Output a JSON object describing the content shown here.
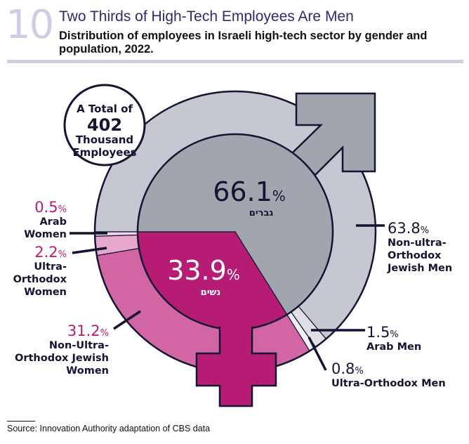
{
  "header": {
    "number": "10",
    "title": "Two Thirds of High-Tech Employees Are Men",
    "subtitle": "Distribution of employees in Israeli high-tech sector by gender and population, 2022."
  },
  "footer": {
    "source": "Source: Innovation Authority adaptation of CBS data"
  },
  "colors": {
    "men_inner": "#a1a5ae",
    "men_outer": "#c6c8d1",
    "arab_men": "#dfe0e6",
    "ultra_men": "#f1f1f4",
    "women_inner": "#b71c74",
    "women_outer": "#d266a5",
    "ultra_women": "#e6a8cc",
    "arab_women": "#f6d4e7",
    "outline": "#141433",
    "accent_pink": "#b71c74"
  },
  "chart_data": {
    "type": "pie",
    "title": "Two Thirds of High-Tech Employees Are Men",
    "total_label": {
      "line1": "A Total of",
      "value": "402",
      "line2": "Thousand",
      "line3": "Employees"
    },
    "inner": [
      {
        "name": "Men",
        "label_he": "גברים",
        "value": 66.1,
        "display": "66.1",
        "unit": "%"
      },
      {
        "name": "Women",
        "label_he": "נשים",
        "value": 33.9,
        "display": "33.9",
        "unit": "%"
      }
    ],
    "outer": [
      {
        "name": "Non-ultra-Orthodox Jewish Men",
        "label_lines": [
          "Non-ultra-",
          "Orthodox",
          "Jewish Men"
        ],
        "value": 63.8,
        "display": "63.8",
        "unit": "%",
        "color_key": "men_outer"
      },
      {
        "name": "Arab Men",
        "label_lines": [
          "Arab Men"
        ],
        "value": 1.5,
        "display": "1.5",
        "unit": "%",
        "color_key": "arab_men"
      },
      {
        "name": "Ultra-Orthodox Men",
        "label_lines": [
          "Ultra-Orthodox Men"
        ],
        "value": 0.8,
        "display": "0.8",
        "unit": "%",
        "color_key": "ultra_men"
      },
      {
        "name": "Non-Ultra-Orthodox Jewish Women",
        "label_lines": [
          "Non-Ultra-",
          "Orthodox Jewish",
          "Women"
        ],
        "value": 31.2,
        "display": "31.2",
        "unit": "%",
        "color_key": "women_outer"
      },
      {
        "name": "Ultra-Orthodox Women",
        "label_lines": [
          "Ultra-",
          "Orthodox",
          "Women"
        ],
        "value": 2.2,
        "display": "2.2",
        "unit": "%",
        "color_key": "ultra_women"
      },
      {
        "name": "Arab Women",
        "label_lines": [
          "Arab",
          "Women"
        ],
        "value": 0.5,
        "display": "0.5",
        "unit": "%",
        "color_key": "arab_women"
      }
    ]
  }
}
